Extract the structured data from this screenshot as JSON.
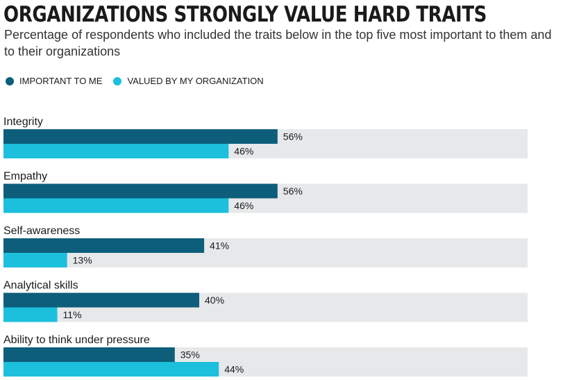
{
  "header": {
    "title": "ORGANIZATIONS STRONGLY VALUE HARD TRAITS",
    "subtitle": "Percentage of respondents who included the traits below in the top five most important to them and to their organizations"
  },
  "legend": {
    "items": [
      {
        "label": "IMPORTANT TO ME",
        "color": "#0d5e7a"
      },
      {
        "label": "VALUED BY MY ORGANIZATION",
        "color": "#1cc0dc"
      }
    ]
  },
  "chart_data": {
    "type": "bar",
    "orientation": "horizontal",
    "categories": [
      "Integrity",
      "Empathy",
      "Self-awareness",
      "Analytical skills",
      "Ability to think under pressure"
    ],
    "series": [
      {
        "name": "IMPORTANT TO ME",
        "values": [
          56,
          56,
          41,
          40,
          35
        ],
        "labels": [
          "56%",
          "56%",
          "41%",
          "40%",
          "35%"
        ],
        "color": "#0d5e7a"
      },
      {
        "name": "VALUED BY MY ORGANIZATION",
        "values": [
          46,
          46,
          13,
          11,
          44
        ],
        "labels": [
          "46%",
          "46%",
          "13%",
          "11%",
          "44%"
        ],
        "color": "#1cc0dc"
      }
    ],
    "xlim": [
      0,
      100
    ],
    "track_color": "#e6e8ea"
  }
}
